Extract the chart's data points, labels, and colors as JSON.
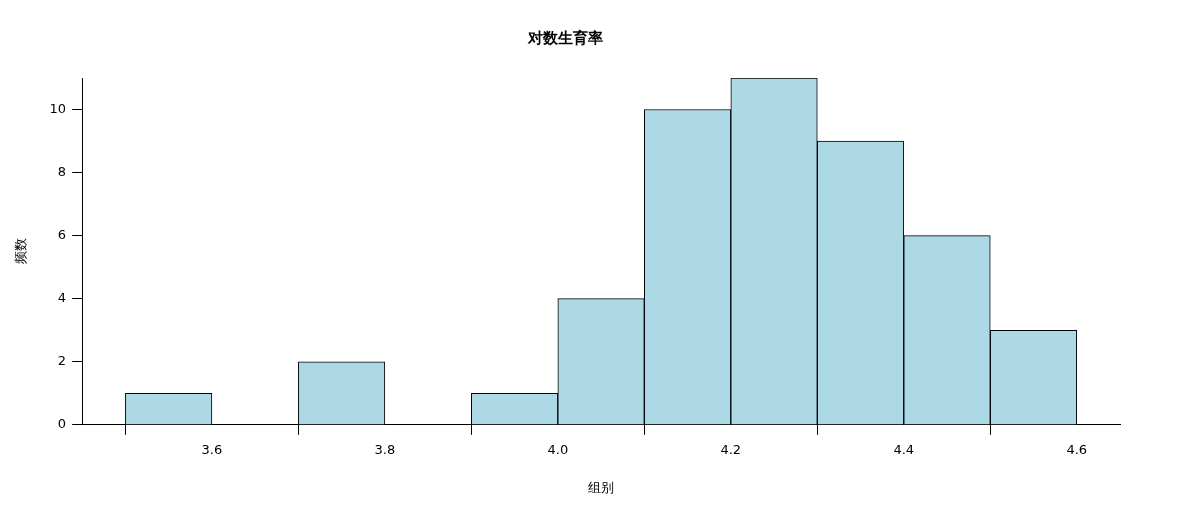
{
  "chart_data": {
    "type": "histogram",
    "title": "对数生育率",
    "xlabel": "组别",
    "ylabel": "频数",
    "bins": [
      3.5,
      3.6,
      3.7,
      3.8,
      3.9,
      4.0,
      4.1,
      4.2,
      4.3,
      4.4,
      4.5,
      4.6
    ],
    "values": [
      1,
      0,
      2,
      0,
      1,
      4,
      10,
      11,
      9,
      6,
      3
    ],
    "color": "#add8e6",
    "xlim": [
      3.45,
      4.65
    ],
    "xticks": [
      3.6,
      3.8,
      {
        "value": 4,
        "label": "4.0"
      },
      4.2,
      4.4,
      4.6
    ],
    "ylim": [
      0,
      11
    ],
    "yticks": [
      0,
      2,
      4,
      6,
      8,
      10
    ],
    "grid": false,
    "legend": false
  }
}
